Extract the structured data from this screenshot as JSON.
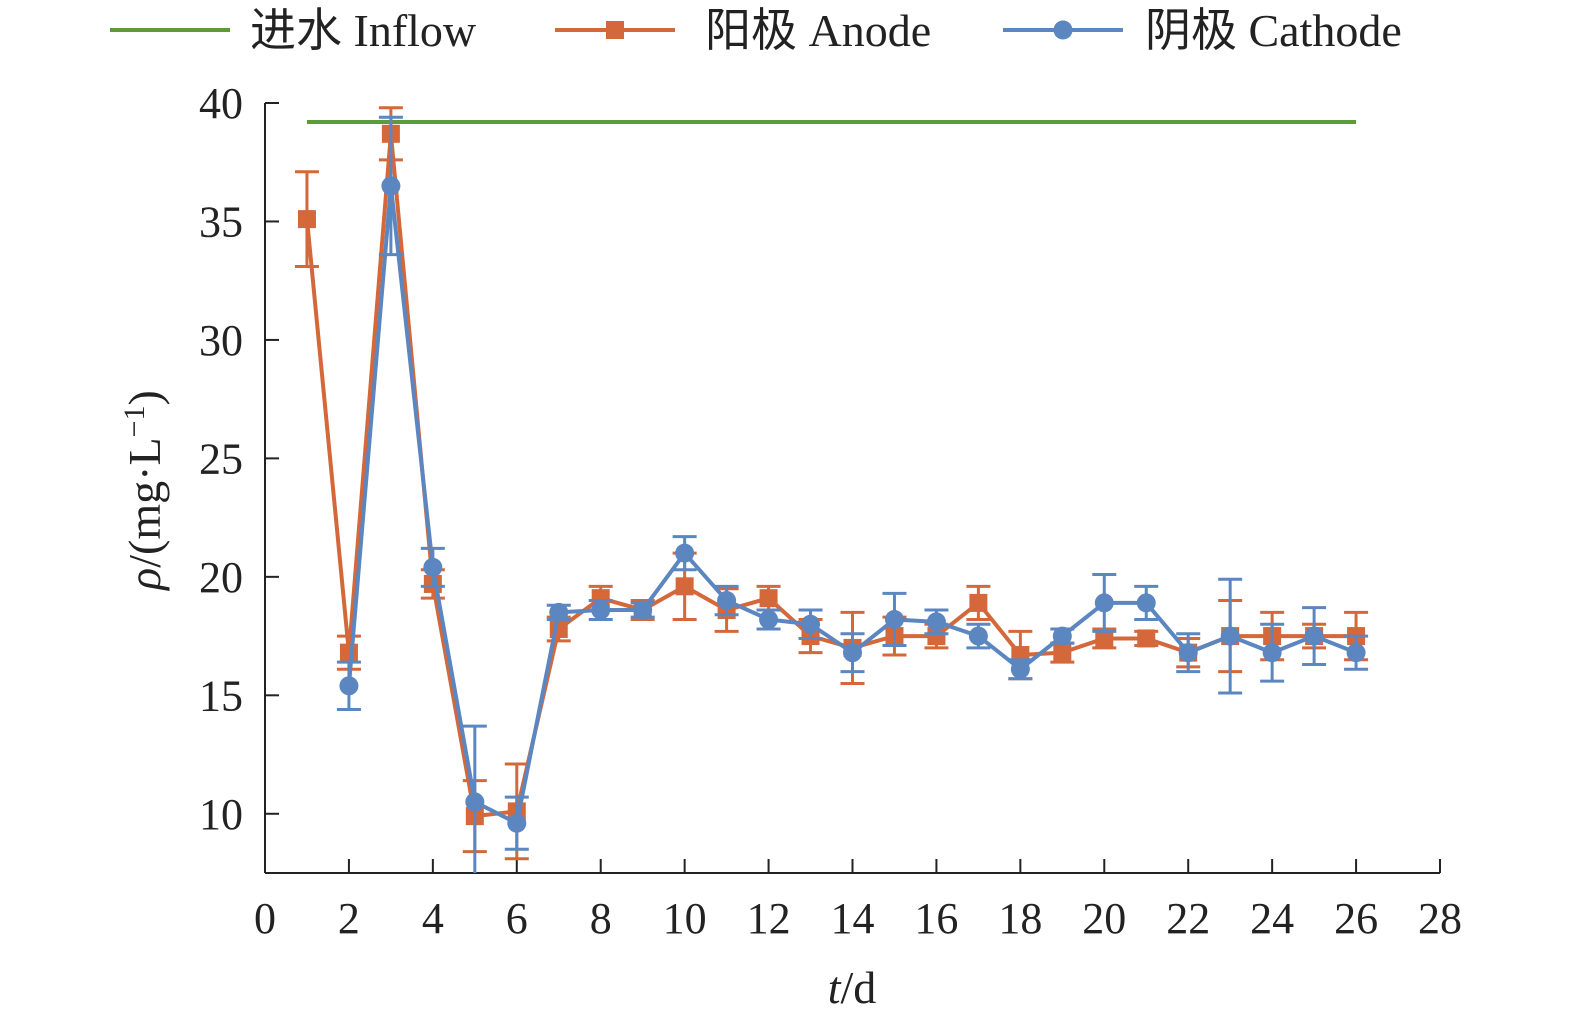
{
  "chart_data": {
    "type": "line",
    "title": "",
    "xlabel_var": "t",
    "xlabel_unit": "/d",
    "ylabel_var": "ρ",
    "ylabel_unit_main": "/(mg·L",
    "ylabel_unit_sup": "−1",
    "ylabel_unit_close": ")",
    "xlim": [
      0,
      28
    ],
    "ylim": [
      7.5,
      40
    ],
    "xticks": [
      "0",
      "2",
      "4",
      "6",
      "8",
      "10",
      "12",
      "14",
      "16",
      "18",
      "20",
      "22",
      "24",
      "26",
      "28"
    ],
    "yticks": [
      "10",
      "15",
      "20",
      "25",
      "30",
      "35",
      "40"
    ],
    "grid": false,
    "legend_position": "top",
    "series": [
      {
        "name": "进水 Inflow",
        "color": "#5d9a3a",
        "marker": "none",
        "x": [
          1,
          26
        ],
        "y": [
          39.2,
          39.2
        ]
      },
      {
        "name": "阳极 Anode",
        "color": "#d4683a",
        "marker": "square",
        "x": [
          1,
          2,
          3,
          4,
          5,
          6,
          7,
          8,
          9,
          10,
          11,
          12,
          13,
          14,
          15,
          16,
          17,
          18,
          19,
          20,
          21,
          22,
          23,
          24,
          25,
          26
        ],
        "y": [
          35.1,
          16.8,
          38.7,
          19.7,
          9.9,
          10.1,
          17.8,
          19.1,
          18.6,
          19.6,
          18.6,
          19.1,
          17.5,
          17.0,
          17.5,
          17.5,
          18.9,
          16.7,
          16.8,
          17.4,
          17.4,
          16.8,
          17.5,
          17.5,
          17.5,
          17.5
        ],
        "err": [
          2.0,
          0.7,
          1.1,
          0.6,
          1.5,
          2.0,
          0.5,
          0.5,
          0.4,
          1.4,
          0.9,
          0.5,
          0.7,
          1.5,
          0.8,
          0.5,
          0.7,
          1.0,
          0.4,
          0.4,
          0.3,
          0.6,
          1.5,
          1.0,
          0.5,
          1.0
        ]
      },
      {
        "name": "阴极 Cathode",
        "color": "#5b86c0",
        "marker": "circle",
        "x": [
          2,
          3,
          4,
          5,
          6,
          7,
          8,
          9,
          10,
          11,
          12,
          13,
          14,
          15,
          16,
          17,
          18,
          19,
          20,
          21,
          22,
          23,
          24,
          25,
          26
        ],
        "y": [
          15.4,
          36.5,
          20.4,
          10.5,
          9.6,
          18.5,
          18.6,
          18.6,
          21.0,
          19.0,
          18.2,
          18.0,
          16.8,
          18.2,
          18.1,
          17.5,
          16.1,
          17.5,
          18.9,
          18.9,
          16.8,
          17.5,
          16.8,
          17.5,
          16.8
        ],
        "err": [
          1.0,
          2.9,
          0.8,
          3.2,
          1.1,
          0.3,
          0.4,
          0.3,
          0.7,
          0.6,
          0.4,
          0.6,
          0.8,
          1.1,
          0.5,
          0.5,
          0.4,
          0.3,
          1.2,
          0.7,
          0.8,
          2.4,
          1.2,
          1.2,
          0.7
        ]
      }
    ]
  }
}
